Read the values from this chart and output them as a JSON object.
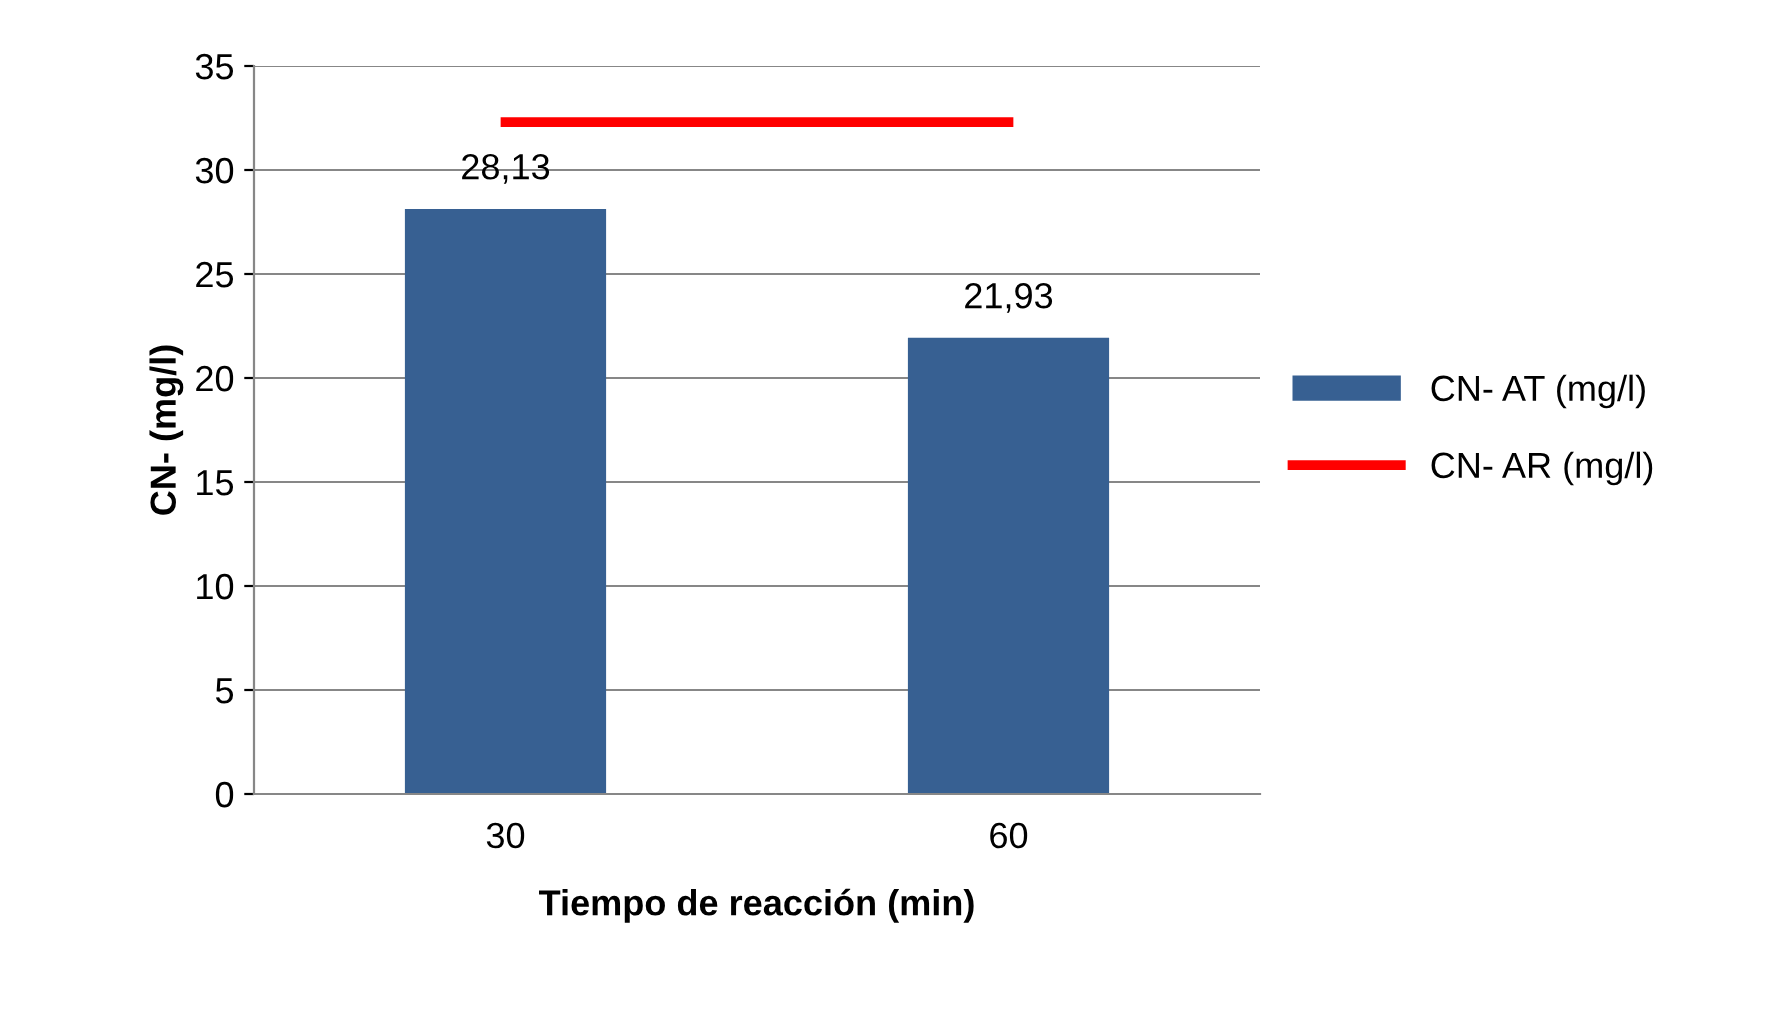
{
  "chart_data": {
    "type": "bar",
    "xlabel": "Tiempo de reacción (min)",
    "ylabel": "CN- (mg/l)",
    "categories": [
      "30",
      "60"
    ],
    "series": [
      {
        "name": "CN- AT (mg/l)",
        "color": "#376092",
        "values": [
          28.13,
          21.93
        ],
        "value_labels": [
          "28,13",
          "21,93"
        ]
      },
      {
        "name": "CN- AR (mg/l)",
        "type": "line",
        "color": "#ff0000",
        "values": [
          32.3,
          32.3
        ]
      }
    ],
    "ylim": [
      0,
      35
    ],
    "yticks": [
      0,
      5,
      10,
      15,
      20,
      25,
      30,
      35
    ],
    "grid": "y",
    "legend": "right",
    "marker": "none",
    "line_style": "solid"
  }
}
